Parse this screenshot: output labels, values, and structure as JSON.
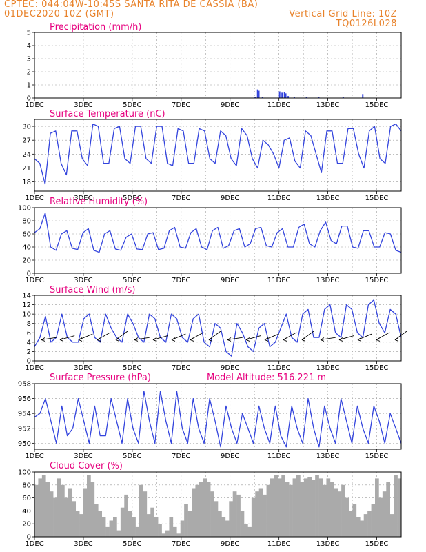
{
  "header": {
    "left_line1": "CPTEC:   044:04W-10:45S   SANTA RITA DE CASSIA (BA)",
    "left_line2": "01DEC2020 10Z (GMT)",
    "right_line2": "Vertical Grid Line: 10Z",
    "right_line3": "TQ0126L028"
  },
  "colors": {
    "header": "#e8822a",
    "title": "#e6007e",
    "line": "#3344dd",
    "cloud": "#aaaaaa"
  },
  "chart_data": [
    {
      "type": "bar",
      "title": "Precipitation (mm/h)",
      "x_ticks": [
        "1DEC",
        "3DEC",
        "5DEC",
        "7DEC",
        "9DEC",
        "11DEC",
        "13DEC",
        "15DEC"
      ],
      "xlim": [
        "01DEC2020 10Z",
        "16DEC2020 10Z"
      ],
      "ylim": [
        0,
        5
      ],
      "y_ticks": [
        0,
        1,
        2,
        3,
        4,
        5
      ],
      "grid": true,
      "times_days": [
        9.0,
        9.1,
        9.15,
        9.3,
        10.0,
        10.1,
        10.2,
        10.25,
        10.35,
        10.6,
        11.1,
        11.6,
        12.6,
        13.4
      ],
      "values": [
        0.1,
        0.65,
        0.55,
        0.1,
        0.5,
        0.4,
        0.45,
        0.35,
        0.15,
        0.1,
        0.1,
        0.1,
        0.1,
        0.3
      ]
    },
    {
      "type": "line",
      "title": "Surface Temperature (nC)",
      "x_ticks": [
        "1DEC",
        "3DEC",
        "5DEC",
        "7DEC",
        "9DEC",
        "11DEC",
        "13DEC",
        "15DEC"
      ],
      "ylim": [
        16,
        31.5
      ],
      "y_ticks": [
        18,
        21,
        24,
        27,
        30
      ],
      "grid": true,
      "values": [
        23,
        22,
        17.5,
        28.5,
        29,
        22,
        19.5,
        29,
        29,
        23,
        21.5,
        30.5,
        30,
        22,
        22,
        29.5,
        30,
        23,
        22,
        30,
        30,
        23,
        22,
        30,
        30,
        22,
        21.5,
        29.5,
        29,
        22,
        22,
        29.5,
        29,
        23,
        22,
        29,
        28,
        23,
        21.5,
        29.5,
        28,
        23,
        21,
        27,
        26,
        24,
        21,
        27,
        27.5,
        22.5,
        21,
        29,
        28,
        24,
        20,
        29,
        29,
        22,
        22,
        29.5,
        29.5,
        24,
        21,
        29,
        30,
        23,
        22,
        30,
        30.5,
        29
      ]
    },
    {
      "type": "line",
      "title": "Relative Humidity (%)",
      "x_ticks": [
        "1DEC",
        "3DEC",
        "5DEC",
        "7DEC",
        "9DEC",
        "11DEC",
        "13DEC",
        "15DEC"
      ],
      "ylim": [
        0,
        100
      ],
      "y_ticks": [
        0,
        20,
        40,
        60,
        80,
        100
      ],
      "grid": true,
      "values": [
        62,
        68,
        92,
        40,
        35,
        60,
        65,
        38,
        36,
        62,
        68,
        35,
        32,
        60,
        65,
        37,
        35,
        55,
        60,
        37,
        36,
        60,
        62,
        36,
        38,
        65,
        70,
        40,
        38,
        62,
        68,
        40,
        36,
        65,
        70,
        38,
        42,
        65,
        68,
        40,
        45,
        68,
        70,
        42,
        40,
        62,
        68,
        40,
        40,
        70,
        75,
        45,
        40,
        65,
        78,
        50,
        45,
        72,
        72,
        40,
        38,
        65,
        65,
        40,
        40,
        62,
        60,
        35,
        32
      ]
    },
    {
      "type": "line",
      "title": "Surface Wind (m/s)",
      "x_ticks": [
        "1DEC",
        "3DEC",
        "5DEC",
        "7DEC",
        "9DEC",
        "11DEC",
        "13DEC",
        "15DEC"
      ],
      "ylim": [
        0,
        14
      ],
      "y_ticks": [
        0,
        2,
        4,
        6,
        8,
        10,
        12,
        14
      ],
      "grid": true,
      "wind_barbs": true,
      "values": [
        3,
        5,
        9.5,
        4,
        5,
        10,
        5,
        4,
        4,
        9,
        10,
        5,
        4,
        10,
        7,
        5,
        4,
        10,
        8,
        5,
        4,
        10,
        9,
        5,
        4,
        10,
        9,
        5,
        4,
        9,
        10,
        4,
        3,
        8,
        7,
        2,
        1,
        8,
        6,
        3,
        2,
        7,
        8,
        3,
        4,
        7,
        10,
        5,
        4,
        10,
        11,
        5,
        5,
        11,
        12,
        6,
        5,
        12,
        11,
        6,
        5,
        12,
        13,
        8,
        6,
        11,
        10,
        5
      ]
    },
    {
      "type": "line",
      "title": "Surface Pressure (hPa)",
      "annotation": "Model Altitude: 516.221 m",
      "x_ticks": [
        "1DEC",
        "3DEC",
        "5DEC",
        "7DEC",
        "9DEC",
        "11DEC",
        "13DEC",
        "15DEC"
      ],
      "ylim": [
        949.2,
        958
      ],
      "y_ticks": [
        950,
        952,
        954,
        956,
        958
      ],
      "grid": true,
      "values": [
        953.5,
        954,
        956,
        953,
        950,
        955,
        951,
        952,
        956,
        953,
        950,
        955,
        951,
        951,
        956,
        953,
        950,
        956,
        952,
        950,
        957,
        953,
        950,
        957,
        953,
        950,
        957,
        952,
        950,
        956,
        952,
        950,
        956,
        953,
        949.5,
        955,
        952,
        950,
        954,
        952,
        950,
        955,
        952,
        950,
        955,
        951,
        949.5,
        955,
        952,
        950,
        956,
        952,
        949.5,
        955,
        952,
        950,
        956,
        953,
        950,
        955,
        952,
        950,
        955,
        953,
        950,
        954,
        952,
        950
      ]
    },
    {
      "type": "area",
      "title": "Cloud Cover (%)",
      "x_ticks": [
        "1DEC",
        "3DEC",
        "5DEC",
        "7DEC",
        "9DEC",
        "11DEC",
        "13DEC",
        "15DEC"
      ],
      "ylim": [
        0,
        100
      ],
      "y_ticks": [
        0,
        20,
        40,
        60,
        80,
        100
      ],
      "grid": true,
      "values": [
        80,
        90,
        95,
        85,
        70,
        60,
        90,
        80,
        60,
        75,
        55,
        40,
        35,
        75,
        95,
        85,
        50,
        40,
        30,
        15,
        25,
        30,
        10,
        45,
        65,
        40,
        30,
        15,
        80,
        70,
        35,
        45,
        30,
        20,
        5,
        10,
        30,
        15,
        5,
        25,
        50,
        40,
        75,
        80,
        85,
        90,
        85,
        70,
        55,
        40,
        30,
        25,
        55,
        70,
        65,
        40,
        20,
        15,
        60,
        70,
        75,
        65,
        80,
        90,
        95,
        90,
        95,
        85,
        80,
        90,
        95,
        85,
        90,
        92,
        88,
        95,
        90,
        80,
        90,
        85,
        75,
        70,
        80,
        60,
        40,
        50,
        30,
        25,
        35,
        40,
        50,
        90,
        60,
        70,
        85,
        35,
        95,
        90
      ]
    }
  ]
}
